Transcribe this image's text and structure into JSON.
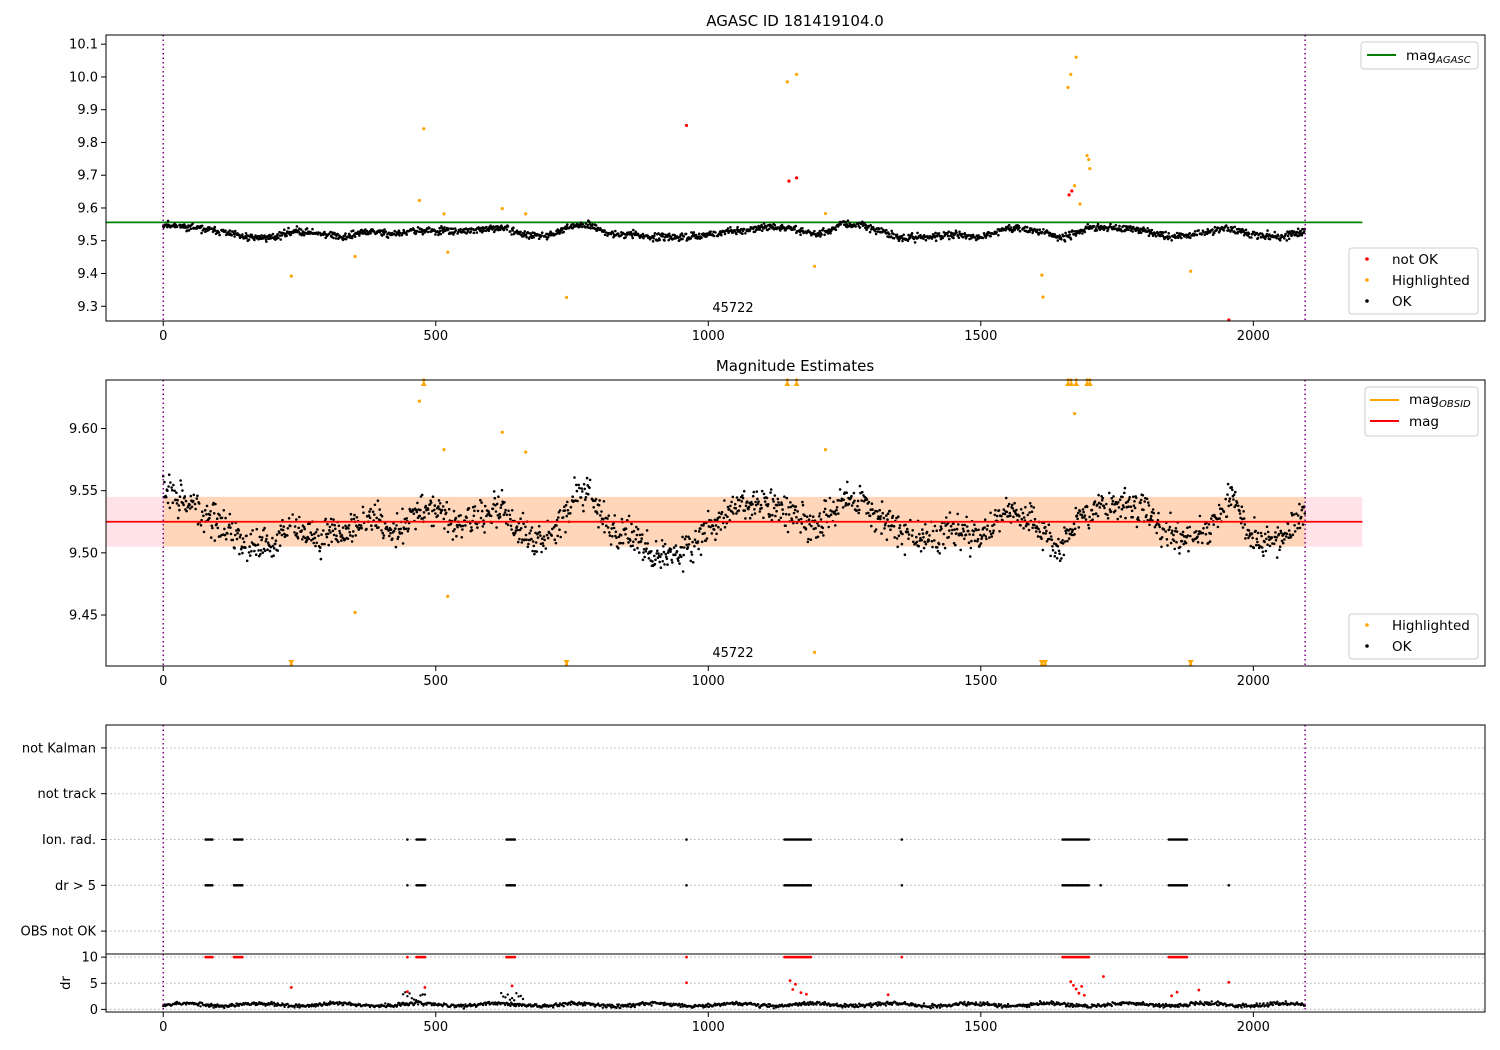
{
  "chart_data": [
    {
      "type": "scatter",
      "title": "AGASC ID 181419104.0",
      "xlim": [
        -105,
        2425
      ],
      "ylim": [
        9.255,
        10.128
      ],
      "xticks": [
        0,
        500,
        1000,
        1500,
        2000
      ],
      "yticks": [
        9.3,
        9.4,
        9.5,
        9.6,
        9.7,
        9.8,
        9.9,
        10.0,
        10.1
      ],
      "ytick_labels": [
        "9.3",
        "9.4",
        "9.5",
        "9.6",
        "9.7",
        "9.8",
        "9.9",
        "10.0",
        "10.1"
      ],
      "obsid_boundaries": [
        0,
        2095
      ],
      "obsid_label": "45722",
      "obsid_label_x": 1047,
      "mag_agasc": 9.556,
      "mag_agasc_xrange": [
        -105,
        2200
      ],
      "legend_upper": [
        {
          "label": "mag",
          "sub": "AGASC",
          "color": "#008000"
        }
      ],
      "legend_lower": [
        {
          "label": "not OK",
          "color": "#ff0000"
        },
        {
          "label": "Highlighted",
          "color": "#ffa500"
        },
        {
          "label": "OK",
          "color": "#000000"
        }
      ],
      "ok_trend": [
        [
          0,
          9.55
        ],
        [
          50,
          9.54
        ],
        [
          100,
          9.53
        ],
        [
          150,
          9.51
        ],
        [
          200,
          9.51
        ],
        [
          240,
          9.53
        ],
        [
          300,
          9.52
        ],
        [
          330,
          9.51
        ],
        [
          380,
          9.53
        ],
        [
          420,
          9.52
        ],
        [
          470,
          9.53
        ],
        [
          520,
          9.53
        ],
        [
          560,
          9.53
        ],
        [
          620,
          9.54
        ],
        [
          660,
          9.52
        ],
        [
          700,
          9.51
        ],
        [
          740,
          9.54
        ],
        [
          780,
          9.55
        ],
        [
          820,
          9.52
        ],
        [
          860,
          9.52
        ],
        [
          900,
          9.51
        ],
        [
          950,
          9.51
        ],
        [
          1000,
          9.52
        ],
        [
          1050,
          9.53
        ],
        [
          1100,
          9.54
        ],
        [
          1150,
          9.54
        ],
        [
          1200,
          9.52
        ],
        [
          1250,
          9.55
        ],
        [
          1300,
          9.54
        ],
        [
          1350,
          9.51
        ],
        [
          1400,
          9.51
        ],
        [
          1450,
          9.52
        ],
        [
          1500,
          9.51
        ],
        [
          1550,
          9.54
        ],
        [
          1600,
          9.53
        ],
        [
          1650,
          9.51
        ],
        [
          1700,
          9.54
        ],
        [
          1750,
          9.54
        ],
        [
          1800,
          9.53
        ],
        [
          1850,
          9.51
        ],
        [
          1900,
          9.52
        ],
        [
          1950,
          9.54
        ],
        [
          2000,
          9.52
        ],
        [
          2050,
          9.51
        ],
        [
          2095,
          9.53
        ]
      ],
      "highlighted_points": [
        [
          235,
          9.392
        ],
        [
          352,
          9.452
        ],
        [
          470,
          9.623
        ],
        [
          478,
          9.842
        ],
        [
          515,
          9.582
        ],
        [
          522,
          9.465
        ],
        [
          622,
          9.598
        ],
        [
          665,
          9.582
        ],
        [
          740,
          9.327
        ],
        [
          1145,
          9.985
        ],
        [
          1162,
          10.008
        ],
        [
          1195,
          9.422
        ],
        [
          1215,
          9.583
        ],
        [
          1612,
          9.395
        ],
        [
          1614,
          9.328
        ],
        [
          1660,
          9.968
        ],
        [
          1665,
          10.008
        ],
        [
          1672,
          9.668
        ],
        [
          1675,
          10.06
        ],
        [
          1682,
          9.612
        ],
        [
          1695,
          9.76
        ],
        [
          1698,
          9.748
        ],
        [
          1700,
          9.72
        ],
        [
          1885,
          9.407
        ]
      ],
      "not_ok_points": [
        [
          960,
          9.852
        ],
        [
          1148,
          9.682
        ],
        [
          1162,
          9.692
        ],
        [
          1662,
          9.64
        ],
        [
          1667,
          9.652
        ],
        [
          1955,
          9.258
        ]
      ]
    },
    {
      "type": "scatter",
      "title": "Magnitude Estimates",
      "xlim": [
        -105,
        2425
      ],
      "ylim": [
        9.409,
        9.639
      ],
      "xticks": [
        0,
        500,
        1000,
        1500,
        2000
      ],
      "yticks": [
        9.45,
        9.5,
        9.55,
        9.6
      ],
      "ytick_labels": [
        "9.45",
        "9.50",
        "9.55",
        "9.60"
      ],
      "obsid_boundaries": [
        0,
        2095
      ],
      "obsid_label": "45722",
      "obsid_label_x": 1047,
      "mag": 9.525,
      "mag_band": [
        9.505,
        9.545
      ],
      "band_xrange": [
        -105,
        2200
      ],
      "obsid_band_xrange": [
        0,
        2095
      ],
      "legend_upper": [
        {
          "label": "mag",
          "sub": "OBSID",
          "color": "#ffa500"
        },
        {
          "label": "mag",
          "sub": "",
          "color": "#ff0000"
        }
      ],
      "legend_lower": [
        {
          "label": "Highlighted",
          "color": "#ffa500"
        },
        {
          "label": "OK",
          "color": "#000000"
        }
      ],
      "ok_trend": [
        [
          0,
          9.55
        ],
        [
          40,
          9.54
        ],
        [
          80,
          9.53
        ],
        [
          110,
          9.52
        ],
        [
          150,
          9.51
        ],
        [
          200,
          9.505
        ],
        [
          240,
          9.525
        ],
        [
          280,
          9.51
        ],
        [
          310,
          9.515
        ],
        [
          350,
          9.52
        ],
        [
          380,
          9.53
        ],
        [
          420,
          9.515
        ],
        [
          460,
          9.53
        ],
        [
          500,
          9.535
        ],
        [
          540,
          9.52
        ],
        [
          580,
          9.53
        ],
        [
          620,
          9.535
        ],
        [
          650,
          9.52
        ],
        [
          680,
          9.51
        ],
        [
          720,
          9.52
        ],
        [
          760,
          9.55
        ],
        [
          790,
          9.545
        ],
        [
          820,
          9.515
        ],
        [
          860,
          9.515
        ],
        [
          900,
          9.495
        ],
        [
          950,
          9.5
        ],
        [
          1000,
          9.52
        ],
        [
          1050,
          9.535
        ],
        [
          1100,
          9.54
        ],
        [
          1150,
          9.53
        ],
        [
          1200,
          9.52
        ],
        [
          1250,
          9.545
        ],
        [
          1300,
          9.535
        ],
        [
          1350,
          9.515
        ],
        [
          1400,
          9.51
        ],
        [
          1450,
          9.52
        ],
        [
          1500,
          9.51
        ],
        [
          1550,
          9.535
        ],
        [
          1600,
          9.525
        ],
        [
          1640,
          9.505
        ],
        [
          1680,
          9.525
        ],
        [
          1720,
          9.54
        ],
        [
          1760,
          9.54
        ],
        [
          1800,
          9.535
        ],
        [
          1840,
          9.515
        ],
        [
          1880,
          9.51
        ],
        [
          1920,
          9.52
        ],
        [
          1960,
          9.545
        ],
        [
          2000,
          9.51
        ],
        [
          2050,
          9.51
        ],
        [
          2095,
          9.535
        ]
      ],
      "highlighted_points": [
        [
          235,
          9.41
        ],
        [
          352,
          9.452
        ],
        [
          470,
          9.622
        ],
        [
          478,
          9.639
        ],
        [
          515,
          9.583
        ],
        [
          522,
          9.465
        ],
        [
          622,
          9.597
        ],
        [
          665,
          9.581
        ],
        [
          740,
          9.41
        ],
        [
          1145,
          9.639
        ],
        [
          1162,
          9.639
        ],
        [
          1195,
          9.42
        ],
        [
          1215,
          9.583
        ],
        [
          1612,
          9.41
        ],
        [
          1618,
          9.41
        ],
        [
          1660,
          9.639
        ],
        [
          1665,
          9.639
        ],
        [
          1672,
          9.612
        ],
        [
          1675,
          9.639
        ],
        [
          1695,
          9.639
        ],
        [
          1700,
          9.639
        ],
        [
          1885,
          9.41
        ]
      ],
      "clipped_up": [
        478,
        1145,
        1162,
        1660,
        1666,
        1675,
        1695,
        1700
      ],
      "clipped_down": [
        235,
        740,
        1612,
        1618,
        1885
      ]
    },
    {
      "type": "scatter",
      "title": "",
      "xlim": [
        -105,
        2425
      ],
      "ylim": [
        0.5,
        5.5
      ],
      "categories": [
        "OBS not OK",
        "dr > 5",
        "Ion. rad.",
        "not track",
        "not Kalman"
      ],
      "obsid_boundaries": [
        0,
        2095
      ],
      "flag_rows": {
        "Ion. rad.": [
          [
            78,
            92
          ],
          [
            130,
            145
          ],
          [
            448,
            448
          ],
          [
            465,
            480
          ],
          [
            630,
            645
          ],
          [
            960,
            960
          ],
          [
            1140,
            1190
          ],
          [
            1355,
            1355
          ],
          [
            1650,
            1700
          ],
          [
            1845,
            1880
          ]
        ],
        "dr > 5": [
          [
            78,
            92
          ],
          [
            130,
            145
          ],
          [
            448,
            448
          ],
          [
            465,
            480
          ],
          [
            630,
            645
          ],
          [
            960,
            960
          ],
          [
            1140,
            1190
          ],
          [
            1355,
            1355
          ],
          [
            1650,
            1700
          ],
          [
            1720,
            1720
          ],
          [
            1845,
            1880
          ],
          [
            1955,
            1955
          ]
        ]
      }
    },
    {
      "type": "scatter",
      "title": "",
      "xlim": [
        -105,
        2425
      ],
      "ylim": [
        -0.5,
        10.6
      ],
      "xticks": [
        0,
        500,
        1000,
        1500,
        2000
      ],
      "yticks": [
        0,
        5,
        10
      ],
      "ytick_labels": [
        "0",
        "5",
        "10"
      ],
      "ylabel": "dr",
      "obsid_boundaries": [
        0,
        2095
      ],
      "dr_clip_ranges": [
        [
          78,
          92
        ],
        [
          130,
          145
        ],
        [
          448,
          448
        ],
        [
          465,
          480
        ],
        [
          630,
          645
        ],
        [
          960,
          960
        ],
        [
          1140,
          1190
        ],
        [
          1355,
          1355
        ],
        [
          1650,
          1700
        ],
        [
          1845,
          1880
        ]
      ],
      "dr_red_points": [
        [
          235,
          4.2
        ],
        [
          448,
          3.4
        ],
        [
          480,
          4.2
        ],
        [
          640,
          4.5
        ],
        [
          960,
          5.1
        ],
        [
          1150,
          5.5
        ],
        [
          1160,
          4.8
        ],
        [
          1170,
          3.2
        ],
        [
          1180,
          2.9
        ],
        [
          1155,
          3.8
        ],
        [
          1330,
          2.8
        ],
        [
          1665,
          5.3
        ],
        [
          1670,
          4.6
        ],
        [
          1675,
          3.9
        ],
        [
          1680,
          3.1
        ],
        [
          1685,
          4.4
        ],
        [
          1690,
          2.7
        ],
        [
          1725,
          6.3
        ],
        [
          1850,
          2.6
        ],
        [
          1860,
          3.3
        ],
        [
          1900,
          3.7
        ],
        [
          1955,
          5.2
        ]
      ]
    }
  ]
}
